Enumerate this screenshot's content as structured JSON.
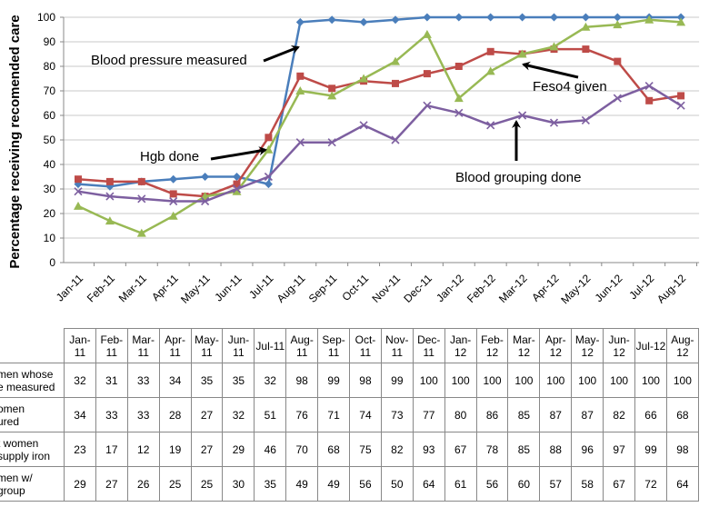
{
  "chart_data": {
    "type": "line",
    "ylabel": "Percentage receiving recomended care",
    "ylim": [
      0,
      100
    ],
    "yticks": [
      0,
      10,
      20,
      30,
      40,
      50,
      60,
      70,
      80,
      90,
      100
    ],
    "categories": [
      "Jan-11",
      "Feb-11",
      "Mar-11",
      "Apr-11",
      "May-11",
      "Jun-11",
      "Jul-11",
      "Aug-11",
      "Sep-11",
      "Oct-11",
      "Nov-11",
      "Dec-11",
      "Jan-12",
      "Feb-12",
      "Mar-12",
      "Apr-12",
      "May-12",
      "Jun-12",
      "Jul-12",
      "Aug-12"
    ],
    "series": [
      {
        "color": "#4a7ebb",
        "marker": "diamond",
        "values": [
          32,
          31,
          33,
          34,
          35,
          35,
          32,
          98,
          99,
          98,
          99,
          100,
          100,
          100,
          100,
          100,
          100,
          100,
          100,
          100
        ]
      },
      {
        "color": "#be4b48",
        "marker": "square",
        "values": [
          34,
          33,
          33,
          28,
          27,
          32,
          51,
          76,
          71,
          74,
          73,
          77,
          80,
          86,
          85,
          87,
          87,
          82,
          66,
          68
        ]
      },
      {
        "color": "#98b954",
        "marker": "triangle",
        "values": [
          23,
          17,
          12,
          19,
          27,
          29,
          46,
          70,
          68,
          75,
          82,
          93,
          67,
          78,
          85,
          88,
          96,
          97,
          99,
          98
        ]
      },
      {
        "color": "#7d5fa0",
        "marker": "x",
        "values": [
          29,
          27,
          26,
          25,
          25,
          30,
          35,
          49,
          49,
          56,
          50,
          64,
          61,
          56,
          60,
          57,
          58,
          67,
          72,
          64
        ]
      }
    ],
    "annotations": [
      {
        "text": "Blood pressure measured"
      },
      {
        "text": "Hgb done"
      },
      {
        "text": "Feso4 given"
      },
      {
        "text": "Blood grouping done"
      }
    ],
    "grid": "horizontal"
  },
  "table": {
    "headers": [
      [
        "Jan-",
        "11"
      ],
      [
        "Feb-",
        "11"
      ],
      [
        "Mar-",
        "11"
      ],
      [
        "Apr-",
        "11"
      ],
      [
        "May-",
        "11"
      ],
      [
        "Jun-",
        "11"
      ],
      [
        "Jul-11"
      ],
      [
        "Aug-",
        "11"
      ],
      [
        "Sep-",
        "11"
      ],
      [
        "Oct-",
        "11"
      ],
      [
        "Nov-",
        "11"
      ],
      [
        "Dec-",
        "11"
      ],
      [
        "Jan-",
        "12"
      ],
      [
        "Feb-",
        "12"
      ],
      [
        "Mar-",
        "12"
      ],
      [
        "Apr-",
        "12"
      ],
      [
        "May-",
        "12"
      ],
      [
        "Jun-",
        "12"
      ],
      [
        "Jul-12"
      ],
      [
        "Aug-",
        "12"
      ]
    ],
    "rows": [
      {
        "label": [
          "men whose",
          "e measured"
        ],
        "values": [
          32,
          31,
          33,
          34,
          35,
          35,
          32,
          98,
          99,
          98,
          99,
          100,
          100,
          100,
          100,
          100,
          100,
          100,
          100,
          100
        ]
      },
      {
        "label": [
          "omen",
          "ured"
        ],
        "values": [
          34,
          33,
          33,
          28,
          27,
          32,
          51,
          76,
          71,
          74,
          73,
          77,
          80,
          86,
          85,
          87,
          87,
          82,
          66,
          68
        ]
      },
      {
        "label": [
          "t women",
          "supply iron"
        ],
        "values": [
          23,
          17,
          12,
          19,
          27,
          29,
          46,
          70,
          68,
          75,
          82,
          93,
          67,
          78,
          85,
          88,
          96,
          97,
          99,
          98
        ]
      },
      {
        "label": [
          "men w/",
          "group"
        ],
        "values": [
          29,
          27,
          26,
          25,
          25,
          30,
          35,
          49,
          49,
          56,
          50,
          64,
          61,
          56,
          60,
          57,
          58,
          67,
          72,
          64
        ]
      }
    ]
  }
}
